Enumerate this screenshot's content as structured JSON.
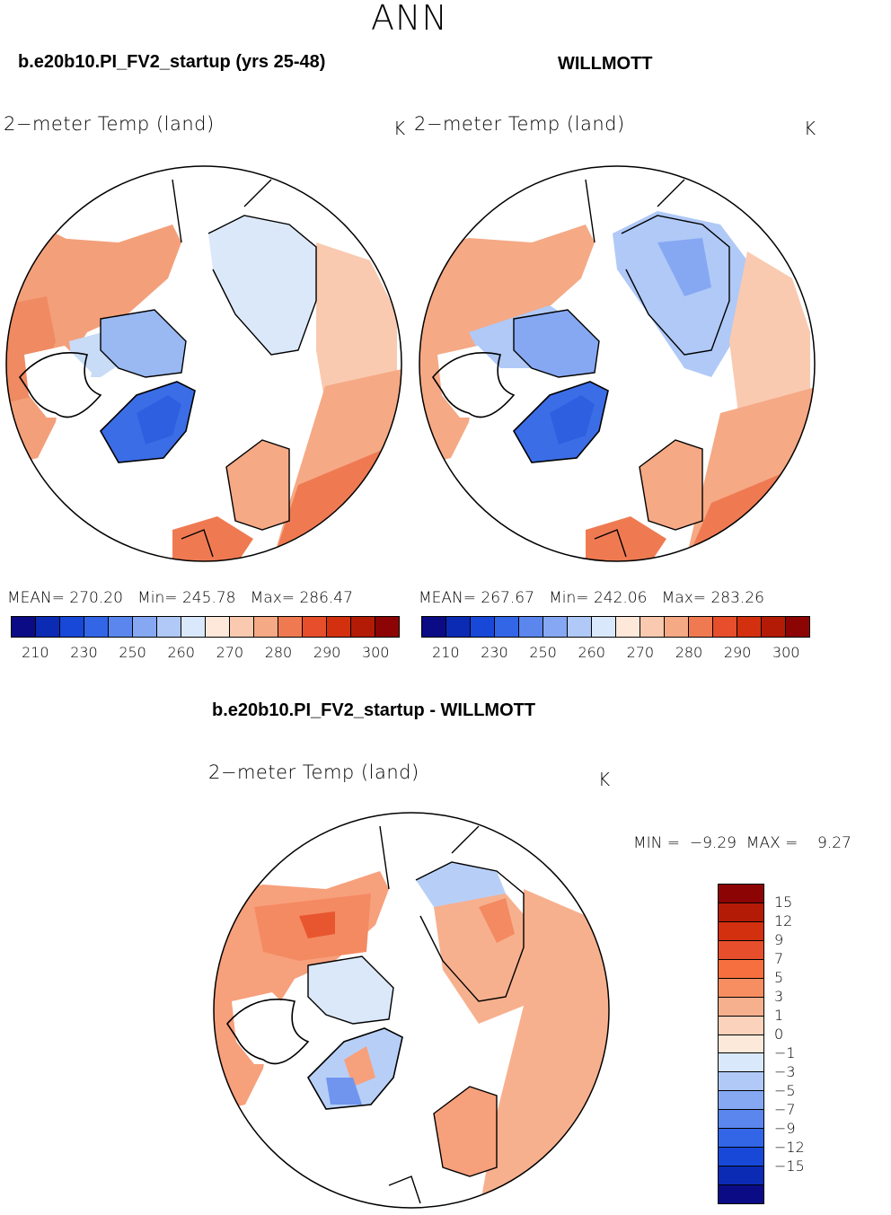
{
  "page": {
    "season": "ANN",
    "case_title": "b.e20b10.PI_FV2_startup (yrs 25-48)",
    "obs_title": "WILLMOTT",
    "diff_title": "b.e20b10.PI_FV2_startup - WILLMOTT"
  },
  "panels": {
    "left": {
      "variable": "2−meter Temp (land)",
      "units": "K",
      "stats": {
        "mean_label": "MEAN=",
        "mean": "270.20",
        "min_label": "Min=",
        "min": "245.78",
        "max_label": "Max=",
        "max": "286.47"
      }
    },
    "right": {
      "variable": "2−meter Temp (land)",
      "units": "K",
      "stats": {
        "mean_label": "MEAN=",
        "mean": "267.67",
        "min_label": "Min=",
        "min": "242.06",
        "max_label": "Max=",
        "max": "283.26"
      }
    },
    "diff": {
      "variable": "2−meter Temp (land)",
      "units": "K",
      "stats": {
        "min_label": "MIN =",
        "min": "−9.29",
        "max_label": "MAX =",
        "max": "9.27"
      }
    }
  },
  "colorbars": {
    "abs": {
      "colors": [
        "#0b0b86",
        "#0b2bb5",
        "#1748d8",
        "#3266e6",
        "#5a86ee",
        "#86a8f3",
        "#b0c9f7",
        "#d9e8fa",
        "#fde8da",
        "#f9cab0",
        "#f5a985",
        "#ef7a52",
        "#e64e2c",
        "#d3300f",
        "#b31b06",
        "#8d0404"
      ],
      "tick_labels": [
        "210",
        "230",
        "250",
        "260",
        "270",
        "280",
        "290",
        "300"
      ]
    },
    "diff": {
      "colors_top_to_bottom": [
        "#8d0404",
        "#b31b06",
        "#d3300f",
        "#e64e2c",
        "#f66f3e",
        "#f78e61",
        "#f7b08e",
        "#fbd2bb",
        "#fde9da",
        "#d9e8fa",
        "#b0c9f7",
        "#86a8f3",
        "#5a86ee",
        "#3266e6",
        "#1748d8",
        "#0b2bb5",
        "#0b0b86"
      ],
      "tick_labels": [
        "15",
        "12",
        "9",
        "7",
        "5",
        "3",
        "1",
        "0",
        "−1",
        "−3",
        "−5",
        "−7",
        "−9",
        "−12",
        "−15"
      ]
    }
  }
}
